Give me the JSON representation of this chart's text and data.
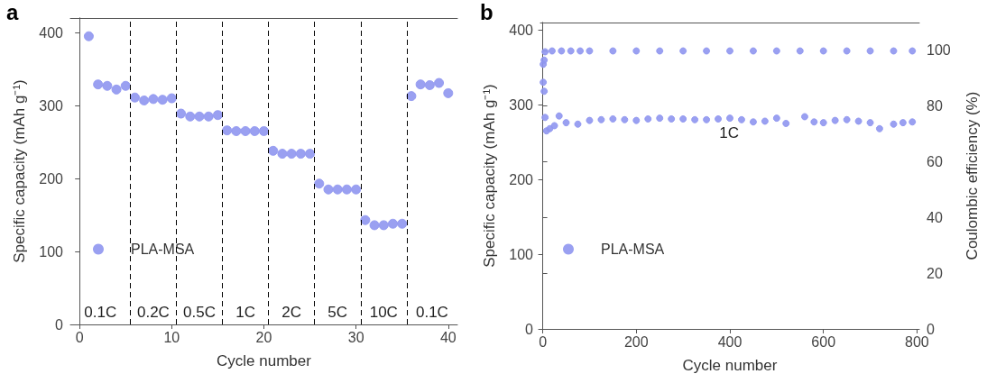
{
  "chart_data": [
    {
      "type": "scatter",
      "title": "a",
      "xlabel": "Cycle number",
      "ylabel": "Specific capacity (mAh g⁻¹)",
      "x": [
        1,
        2,
        3,
        4,
        5,
        6,
        7,
        8,
        9,
        10,
        11,
        12,
        13,
        14,
        15,
        16,
        17,
        18,
        19,
        20,
        21,
        22,
        23,
        24,
        25,
        26,
        27,
        28,
        29,
        30,
        31,
        32,
        33,
        34,
        35,
        36,
        37,
        38,
        39,
        40
      ],
      "series": [
        {
          "name": "PLA-MSA",
          "color": "#8f96f0",
          "values": [
            395,
            329,
            327,
            322,
            327,
            311,
            307,
            309,
            308,
            310,
            289,
            285,
            285,
            285,
            287,
            266,
            265,
            265,
            265,
            265,
            238,
            234,
            234,
            234,
            234,
            193,
            185,
            185,
            185,
            185,
            143,
            136,
            136,
            138,
            138,
            313,
            329,
            328,
            331,
            317
          ]
        }
      ],
      "xlim": [
        -1,
        41
      ],
      "ylim": [
        0,
        420
      ],
      "xticks": [
        0,
        10,
        20,
        30,
        40
      ],
      "yticks": [
        0,
        100,
        200,
        300,
        400
      ],
      "ref_lines": [
        {
          "axis": "x",
          "value": 5.5,
          "label": null,
          "color": "#000000",
          "line_style": "dashed"
        },
        {
          "axis": "x",
          "value": 10.5,
          "label": null,
          "color": "#000000",
          "line_style": "dashed"
        },
        {
          "axis": "x",
          "value": 15.5,
          "label": null,
          "color": "#000000",
          "line_style": "dashed"
        },
        {
          "axis": "x",
          "value": 20.5,
          "label": null,
          "color": "#000000",
          "line_style": "dashed"
        },
        {
          "axis": "x",
          "value": 25.5,
          "label": null,
          "color": "#000000",
          "line_style": "dashed"
        },
        {
          "axis": "x",
          "value": 30.5,
          "label": null,
          "color": "#000000",
          "line_style": "dashed"
        },
        {
          "axis": "x",
          "value": 35.5,
          "label": null,
          "color": "#000000",
          "line_style": "dashed"
        }
      ],
      "annotations": [
        "0.1C",
        "0.2C",
        "0.5C",
        "1C",
        "2C",
        "5C",
        "10C",
        "0.1C"
      ],
      "legend": "left",
      "marker": "circle",
      "grid": false
    },
    {
      "type": "scatter",
      "title": "b",
      "xlabel": "Cycle number",
      "ylabel": "Specific capacity (mAh g⁻¹)",
      "y2label": "Coulombic efficiency (%)",
      "series": [
        {
          "name": "PLA-MSA",
          "color": "#8f96f0",
          "x": [
            1,
            3,
            5,
            8,
            15,
            25,
            35,
            50,
            75,
            100,
            125,
            150,
            175,
            200,
            225,
            250,
            275,
            300,
            325,
            350,
            375,
            400,
            425,
            450,
            475,
            500,
            520,
            560,
            580,
            600,
            625,
            650,
            675,
            700,
            720,
            750,
            770,
            790
          ],
          "values": [
            330,
            318,
            283,
            265,
            268,
            272,
            285,
            276,
            274,
            279,
            280,
            281,
            280,
            279,
            281,
            282,
            281,
            281,
            280,
            280,
            281,
            282,
            280,
            277,
            278,
            282,
            275,
            284,
            277,
            276,
            279,
            280,
            278,
            276,
            268,
            274,
            276,
            277
          ]
        },
        {
          "color": "#8f96f0",
          "axis": "y2",
          "x": [
            1,
            3,
            5,
            20,
            40,
            60,
            80,
            100,
            150,
            200,
            250,
            300,
            350,
            400,
            450,
            500,
            550,
            600,
            650,
            700,
            750,
            790
          ],
          "values": [
            95,
            96.5,
            99.5,
            99.8,
            99.8,
            99.8,
            99.8,
            99.8,
            99.8,
            99.8,
            99.8,
            99.8,
            99.8,
            99.8,
            99.8,
            99.8,
            99.8,
            99.8,
            99.8,
            99.8,
            99.8,
            99.8
          ]
        }
      ],
      "xlim": [
        -5,
        805
      ],
      "ylim": [
        0,
        410
      ],
      "y2lim": [
        0,
        110
      ],
      "xticks": [
        0,
        200,
        400,
        600,
        800
      ],
      "yticks": [
        0,
        100,
        200,
        300,
        400
      ],
      "y2ticks": [
        0,
        20,
        40,
        60,
        80,
        100
      ],
      "annotations": [
        "1C"
      ],
      "legend": "left",
      "marker": "circle",
      "grid": false
    }
  ]
}
